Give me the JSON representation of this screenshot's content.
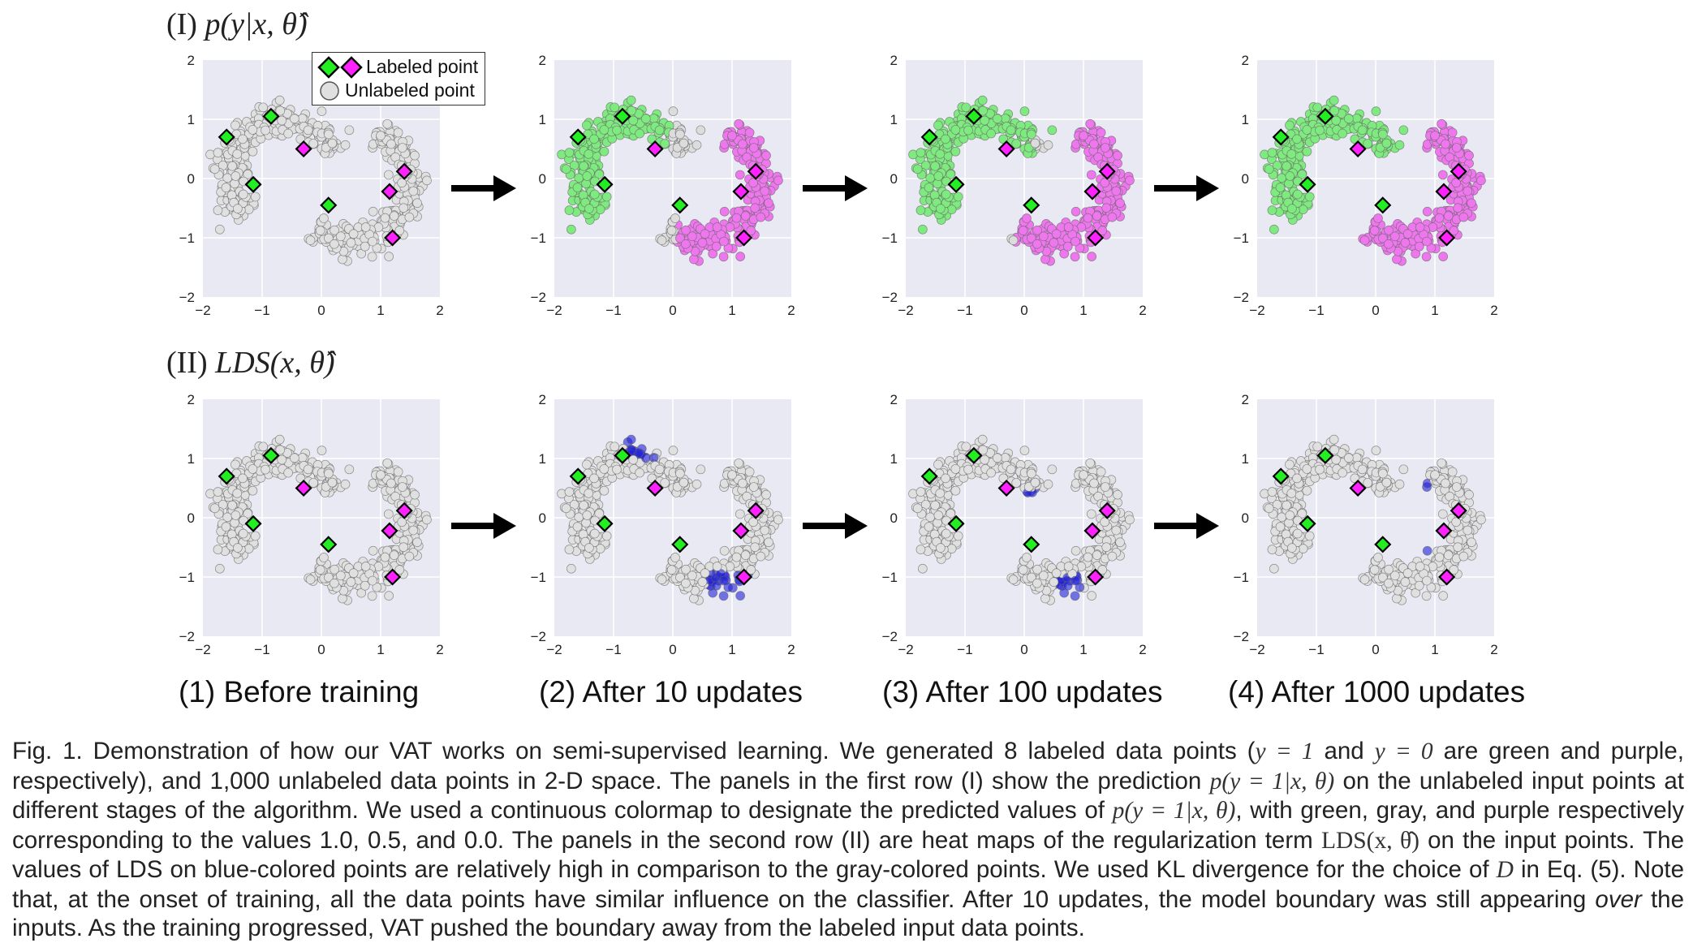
{
  "row_labels": {
    "row1_prefix": "(I)",
    "row1_expr": "p(y|x, θ̂)",
    "row2_prefix": "(II)",
    "row2_expr": "LDS(x, θ̂)"
  },
  "legend": {
    "labeled": "Labeled point",
    "unlabeled": "Unlabeled point"
  },
  "stage_captions": [
    "(1) Before training",
    "(2) After 10 updates",
    "(3) After 100 updates",
    "(4) After 1000 updates"
  ],
  "axis_ticks": [
    "−2",
    "−1",
    "0",
    "1",
    "2"
  ],
  "colors": {
    "panel_bg": "#e9e9f3",
    "green": "#22ee22",
    "purple": "#ff22ff",
    "gray_point": "#e0e0e0",
    "blue": "#2222dd",
    "light_green": "#7fea7f",
    "light_purple": "#ee77ee"
  },
  "chart_data": {
    "type": "scatter",
    "xlim": [
      -2,
      2
    ],
    "ylim": [
      -2,
      2
    ],
    "labeled_points": [
      {
        "x": -1.6,
        "y": 0.7,
        "class": "y=1 (green)"
      },
      {
        "x": -0.85,
        "y": 1.05,
        "class": "y=1 (green)"
      },
      {
        "x": -1.15,
        "y": -0.1,
        "class": "y=1 (green)"
      },
      {
        "x": 0.12,
        "y": -0.45,
        "class": "y=1 (green)"
      },
      {
        "x": -0.3,
        "y": 0.5,
        "class": "y=0 (purple)"
      },
      {
        "x": 1.4,
        "y": 0.12,
        "class": "y=0 (purple)"
      },
      {
        "x": 1.15,
        "y": -0.22,
        "class": "y=0 (purple)"
      },
      {
        "x": 1.2,
        "y": -1.0,
        "class": "y=0 (purple)"
      }
    ],
    "panels": [
      {
        "row": "I",
        "stage": "(1) Before training"
      },
      {
        "row": "I",
        "stage": "(2) After 10 updates"
      },
      {
        "row": "I",
        "stage": "(3) After 100 updates"
      },
      {
        "row": "I",
        "stage": "(4) After 1000 updates"
      },
      {
        "row": "II",
        "stage": "(1) Before training"
      },
      {
        "row": "II",
        "stage": "(2) After 10 updates"
      },
      {
        "row": "II",
        "stage": "(3) After 100 updates"
      },
      {
        "row": "II",
        "stage": "(4) After 1000 updates"
      }
    ]
  },
  "figure_caption": {
    "p1": "Fig. 1. Demonstration of how our VAT works on semi-supervised learning. We generated 8 labeled data points (",
    "m1": "y = 1",
    "p2": " and ",
    "m2": "y = 0",
    "p3": " are green and purple, respectively), and 1,000 unlabeled data points in 2-D space. The panels in the first row (I) show the prediction ",
    "m3": "p(y = 1|x, θ)",
    "p4": " on the unlabeled input points at different stages of the algorithm. We used a continuous colormap to designate the predicted values of ",
    "m4": "p(y = 1|x, θ)",
    "p5": ", with green, gray, and purple respectively corresponding to the values 1.0, 0.5, and 0.0. The panels in the second row (II) are heat maps of the regularization term ",
    "m5": "LDS(x, θ̂)",
    "p6": " on the input points. The values of LDS on blue-colored points are relatively high in comparison to the gray-colored points. We used KL divergence for the choice of ",
    "m6": "D",
    "p7": " in Eq. (5). Note that, at the onset of training, all the data points have similar influence on the classifier. After 10 updates, the model boundary was still appearing ",
    "em1": "over",
    "p8": " the inputs. As the training progressed, VAT pushed the boundary away from the labeled input data points."
  }
}
